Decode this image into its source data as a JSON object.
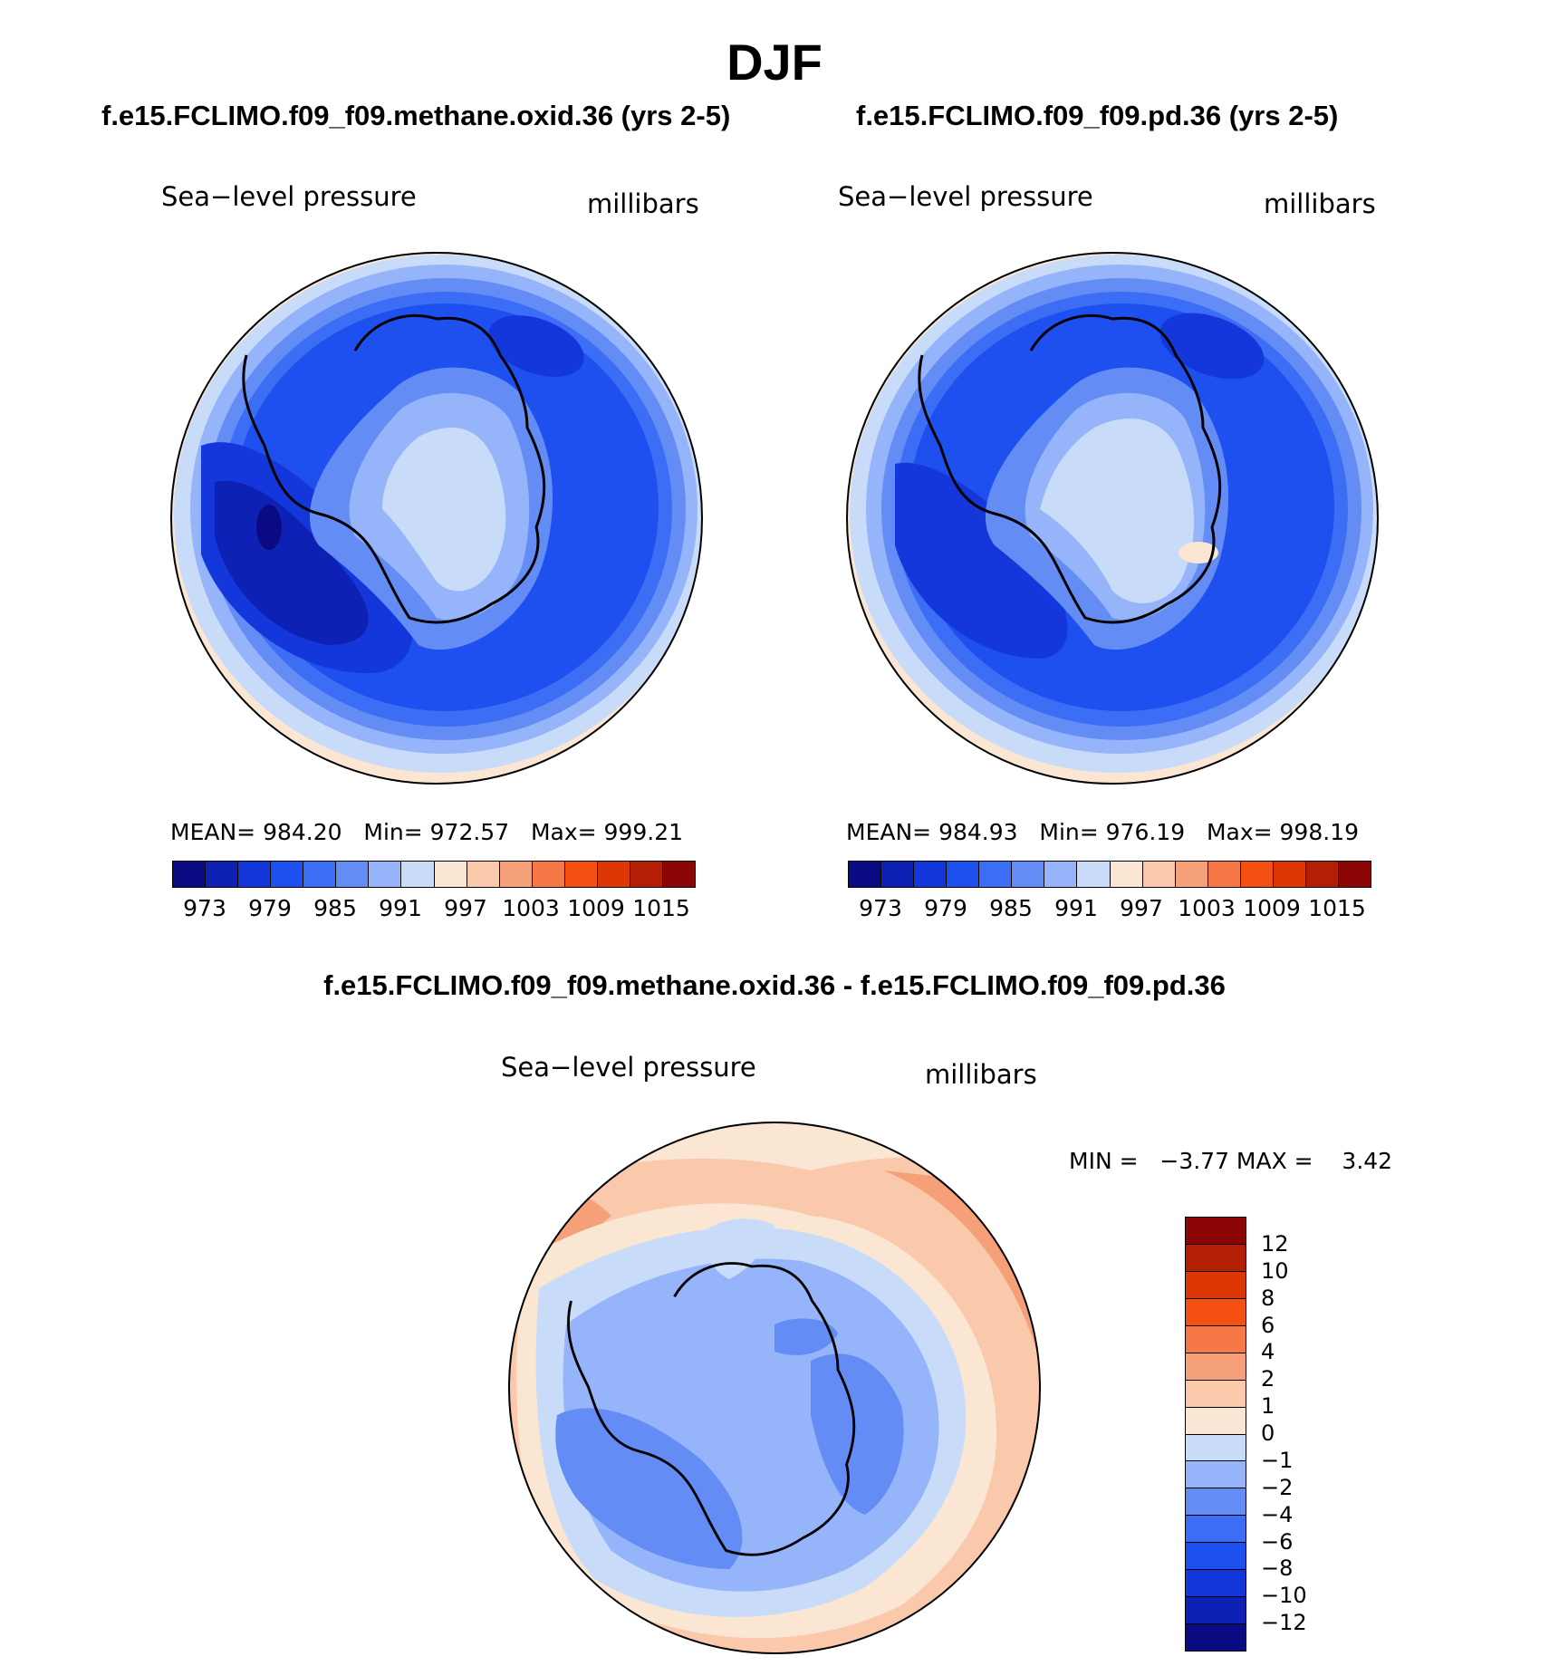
{
  "season": "DJF",
  "panels": [
    {
      "case_title": "f.e15.FCLIMO.f09_f09.methane.oxid.36 (yrs 2-5)",
      "left_label": "Sea−level pressure",
      "right_label": "millibars",
      "stats": "MEAN= 984.20   Min= 972.57   Max= 999.21"
    },
    {
      "case_title": "f.e15.FCLIMO.f09_f09.pd.36 (yrs 2-5)",
      "left_label": "Sea−level pressure",
      "right_label": "millibars",
      "stats": "MEAN= 984.93   Min= 976.19   Max= 998.19"
    }
  ],
  "diff_panel": {
    "title": "f.e15.FCLIMO.f09_f09.methane.oxid.36 - f.e15.FCLIMO.f09_f09.pd.36",
    "left_label": "Sea−level pressure",
    "right_label": "millibars",
    "minmax": "MIN =   −3.77 MAX =    3.42"
  },
  "abs_colorbar": {
    "colors": [
      "#0a0a82",
      "#0d22b5",
      "#1437dc",
      "#1e50f0",
      "#3c6ef5",
      "#648cf5",
      "#96b4fa",
      "#c8dcfa",
      "#fae6d2",
      "#fac8aa",
      "#f5a078",
      "#f57846",
      "#f55014",
      "#dc3705",
      "#b41e05",
      "#8c0505"
    ],
    "labels": [
      "973",
      "979",
      "985",
      "991",
      "997",
      "1003",
      "1009",
      "1015"
    ]
  },
  "diff_colorbar": {
    "colors": [
      "#8c0505",
      "#b41e05",
      "#dc3705",
      "#f55014",
      "#f57846",
      "#f5a078",
      "#fac8aa",
      "#fae6d2",
      "#c8dcfa",
      "#96b4fa",
      "#648cf5",
      "#3c6ef5",
      "#1e50f0",
      "#1437dc",
      "#0d22b5",
      "#0a0a82"
    ],
    "labels": [
      "12",
      "10",
      "8",
      "6",
      "4",
      "2",
      "1",
      "0",
      "−1",
      "−2",
      "−4",
      "−6",
      "−8",
      "−10",
      "−12"
    ]
  }
}
